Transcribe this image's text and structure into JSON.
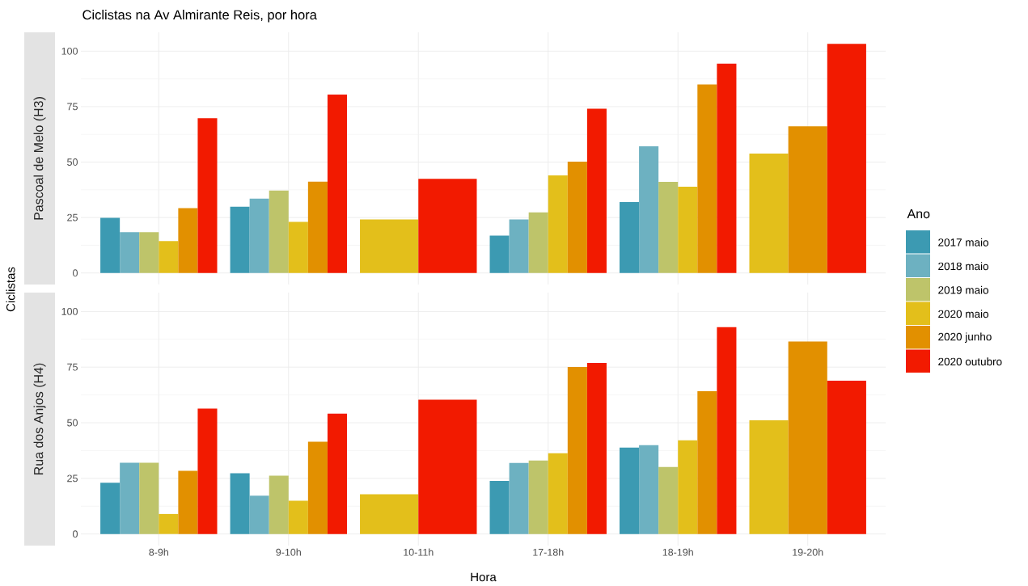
{
  "chart_data": [
    {
      "type": "bar",
      "title": "Ciclistas na Av Almirante Reis, por hora",
      "subtitle": "Pascoal de Melo  (H3)",
      "ylabel": "Ciclistas",
      "legend_title": "Ano",
      "legend": "right",
      "categories": [
        null,
        null,
        null,
        null,
        null,
        null
      ],
      "series": [
        {
          "name": "2017 maio",
          "color": "#3c9ab2",
          "values": [
            24.9,
            29.9,
            null,
            16.8,
            32,
            null
          ]
        },
        {
          "name": "2018 maio",
          "color": "#6db1c1",
          "values": [
            18.4,
            33.5,
            null,
            24.1,
            57.1,
            null
          ]
        },
        {
          "name": "2019 maio",
          "color": "#bec46a",
          "values": [
            18.4,
            37.2,
            null,
            27.3,
            41.1,
            null
          ]
        },
        {
          "name": "2020 maio",
          "color": "#e3bf1b",
          "values": [
            14.4,
            23,
            24.1,
            44,
            38.9,
            53.8
          ]
        },
        {
          "name": "2020 junho",
          "color": "#e29000",
          "values": [
            29.2,
            41.2,
            null,
            50.2,
            85,
            66.1
          ]
        },
        {
          "name": "2020 outubro",
          "color": "#f21a00",
          "values": [
            69.8,
            80.4,
            42.4,
            74.1,
            94.4,
            103.3
          ]
        }
      ],
      "ylim": [
        -5.2,
        108.5
      ],
      "yticks": [
        0,
        25,
        50,
        75,
        100
      ],
      "grid": true
    },
    {
      "type": "bar",
      "subtitle": "Rua dos Anjos  (H4)",
      "xlabel": "Hora",
      "categories": [
        "8-9h",
        "9-10h",
        "10-11h",
        "17-18h",
        "18-19h",
        "19-20h"
      ],
      "series": [
        {
          "color": "#3c9ab2",
          "values": [
            23,
            27.3,
            null,
            23.9,
            38.8,
            null
          ]
        },
        {
          "color": "#6db1c1",
          "values": [
            32,
            17.2,
            null,
            31.9,
            39.9,
            null
          ]
        },
        {
          "color": "#bec46a",
          "values": [
            32,
            26.2,
            null,
            33,
            30.1,
            null
          ]
        },
        {
          "color": "#e3bf1b",
          "values": [
            9,
            15,
            17.9,
            36.3,
            42.1,
            51.1
          ]
        },
        {
          "color": "#e29000",
          "values": [
            28.4,
            41.5,
            null,
            75.1,
            64.2,
            86.5
          ]
        },
        {
          "color": "#f21a00",
          "values": [
            56.4,
            54.1,
            60.4,
            76.9,
            93,
            68.9
          ]
        }
      ],
      "ylim": [
        -5.2,
        108.5
      ],
      "yticks": [
        0,
        25,
        50,
        75,
        100
      ],
      "grid": true
    }
  ]
}
